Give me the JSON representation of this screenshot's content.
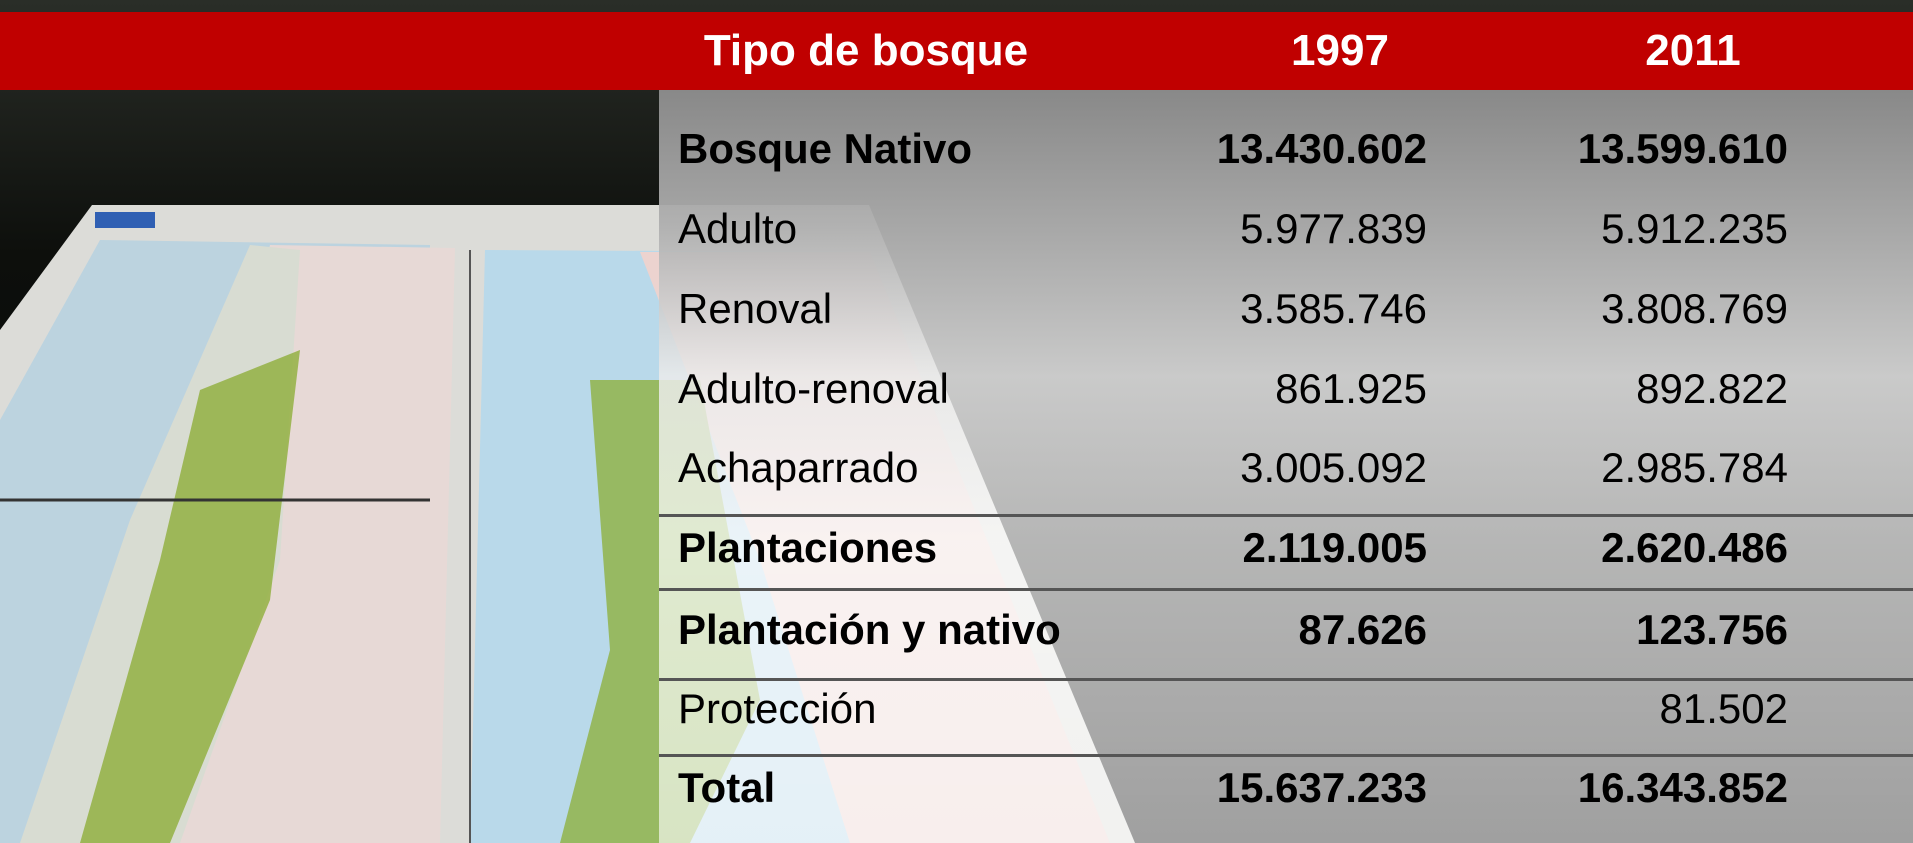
{
  "table": {
    "header": [
      "Tipo de bosque",
      "1997",
      "2011"
    ],
    "rows": [
      [
        "Bosque Nativo",
        "13.430.602",
        "13.599.610"
      ],
      [
        "Adulto",
        "5.977.839",
        "5.912.235"
      ],
      [
        "Renoval",
        "3.585.746",
        "3.808.769"
      ],
      [
        "Adulto-renoval",
        "861.925",
        "892.822"
      ],
      [
        "Achaparrado",
        "3.005.092",
        "2.985.784"
      ],
      [
        "Plantaciones",
        "2.119.005",
        "2.620.486"
      ],
      [
        "Plantación y nativo",
        "87.626",
        "123.756"
      ],
      [
        "Protección",
        null,
        "81.502"
      ],
      [
        "Total",
        "15.637.233",
        "16.343.852"
      ]
    ]
  }
}
